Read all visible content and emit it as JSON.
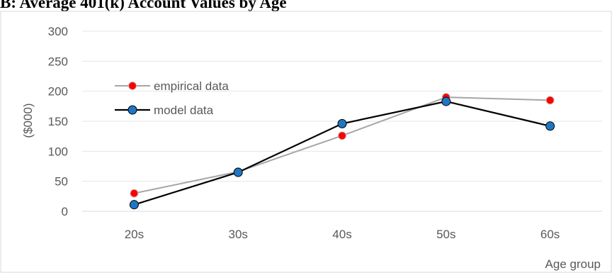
{
  "chart_data": {
    "type": "line",
    "title": "B: Average 401(k) Account Values by Age",
    "xlabel": "Age group",
    "ylabel": "($000)",
    "categories": [
      "20s",
      "30s",
      "40s",
      "50s",
      "60s"
    ],
    "ylim": [
      0,
      300
    ],
    "yticks": [
      0,
      50,
      100,
      150,
      200,
      250,
      300
    ],
    "grid": "horizontal",
    "legend_position": "upper-left",
    "series": [
      {
        "name": "empirical data",
        "values": [
          30,
          66,
          126,
          190,
          185
        ],
        "line_color": "#a6a6a6",
        "marker_color": "#ff0000"
      },
      {
        "name": "model data",
        "values": [
          11,
          65,
          146,
          183,
          142
        ],
        "line_color": "#000000",
        "marker_color": "#1f77c4"
      }
    ]
  }
}
